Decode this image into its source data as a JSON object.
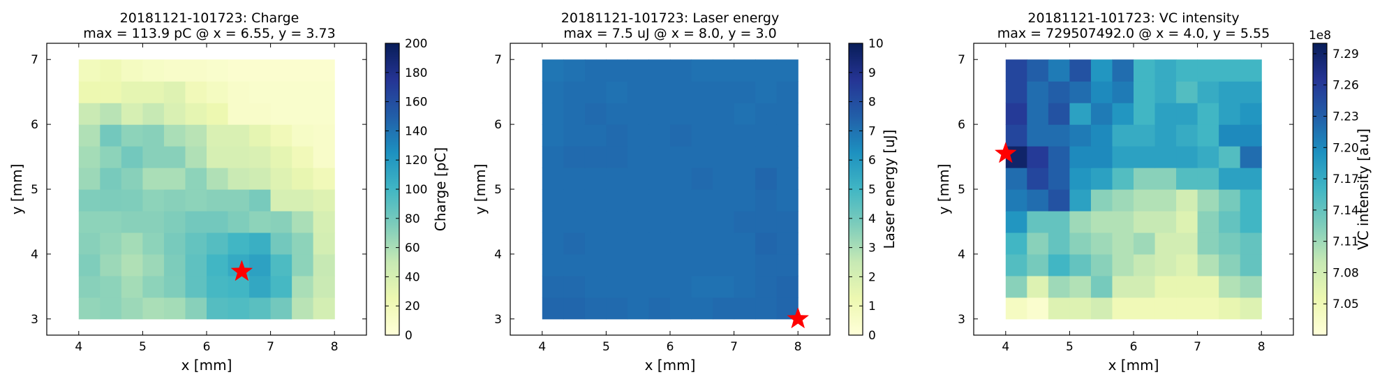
{
  "chart_data": [
    {
      "type": "heatmap",
      "title": [
        "20181121-101723: Charge",
        "max = 113.9 pC @ x = 6.55, y = 3.73"
      ],
      "xlabel": "x [mm]",
      "ylabel": "y [mm]",
      "xlim": [
        3.5,
        8.5
      ],
      "ylim": [
        2.75,
        7.25
      ],
      "xticks": [
        4,
        5,
        6,
        7,
        8
      ],
      "yticks": [
        3,
        4,
        5,
        6,
        7
      ],
      "extent": {
        "x": [
          4,
          8
        ],
        "y": [
          3,
          7
        ]
      },
      "colorbar": {
        "label": "Charge [pC]",
        "range": [
          0,
          200
        ],
        "ticks": [
          "0",
          "20",
          "40",
          "60",
          "80",
          "100",
          "120",
          "140",
          "160",
          "180",
          "200"
        ],
        "offset_label": ""
      },
      "colormap": [
        "#ffffd9",
        "#edf8b1",
        "#c7e9b4",
        "#7fcdbb",
        "#41b6c4",
        "#1d91c0",
        "#225ea8",
        "#253494",
        "#081d58"
      ],
      "values": [
        [
          68,
          70,
          65,
          60,
          62,
          72,
          92,
          94,
          90,
          80,
          55,
          42
        ],
        [
          72,
          70,
          62,
          70,
          75,
          88,
          98,
          100,
          110,
          98,
          60,
          48
        ],
        [
          75,
          65,
          58,
          65,
          76,
          88,
          100,
          108,
          114,
          95,
          70,
          50
        ],
        [
          72,
          68,
          62,
          70,
          78,
          86,
          92,
          100,
          105,
          80,
          70,
          42
        ],
        [
          70,
          70,
          72,
          72,
          75,
          80,
          80,
          75,
          70,
          72,
          60,
          40
        ],
        [
          75,
          76,
          75,
          70,
          72,
          70,
          72,
          72,
          78,
          40,
          40,
          35
        ],
        [
          65,
          78,
          72,
          60,
          60,
          70,
          58,
          48,
          45,
          35,
          28,
          20
        ],
        [
          62,
          70,
          80,
          72,
          72,
          58,
          40,
          40,
          38,
          30,
          20,
          10
        ],
        [
          58,
          80,
          70,
          72,
          60,
          55,
          38,
          38,
          30,
          20,
          12,
          10
        ],
        [
          48,
          55,
          40,
          50,
          38,
          30,
          25,
          10,
          10,
          8,
          8,
          8
        ],
        [
          25,
          25,
          30,
          30,
          35,
          20,
          15,
          10,
          8,
          8,
          8,
          8
        ],
        [
          18,
          22,
          15,
          12,
          10,
          10,
          8,
          6,
          6,
          6,
          6,
          6
        ]
      ],
      "marker": {
        "x": 6.55,
        "y": 3.73,
        "color": "#ff0000"
      }
    },
    {
      "type": "heatmap",
      "title": [
        "20181121-101723: Laser energy",
        "max = 7.5 uJ @ x = 8.0, y = 3.0"
      ],
      "xlabel": "x [mm]",
      "ylabel": "y [mm]",
      "xlim": [
        3.5,
        8.5
      ],
      "ylim": [
        2.75,
        7.25
      ],
      "xticks": [
        4,
        5,
        6,
        7,
        8
      ],
      "yticks": [
        3,
        4,
        5,
        6,
        7
      ],
      "extent": {
        "x": [
          4,
          8
        ],
        "y": [
          3,
          7
        ]
      },
      "colorbar": {
        "label": "Laser energy [uJ]",
        "range": [
          0,
          10
        ],
        "ticks": [
          "0",
          "1",
          "2",
          "3",
          "4",
          "5",
          "6",
          "7",
          "8",
          "9",
          "10"
        ],
        "offset_label": ""
      },
      "colormap": [
        "#ffffd9",
        "#edf8b1",
        "#c7e9b4",
        "#7fcdbb",
        "#41b6c4",
        "#1d91c0",
        "#225ea8",
        "#253494",
        "#081d58"
      ],
      "values": [
        [
          7.3,
          7.3,
          7.2,
          7.2,
          7.1,
          7.2,
          7.1,
          7.1,
          7.2,
          7.2,
          7.2,
          7.3
        ],
        [
          7.2,
          7.2,
          7.1,
          7.1,
          7.1,
          7.1,
          7.1,
          7.0,
          7.0,
          7.1,
          7.2,
          7.3
        ],
        [
          7.1,
          7.1,
          7.1,
          7.1,
          7.1,
          7.1,
          7.1,
          7.1,
          7.1,
          7.1,
          7.2,
          7.2
        ],
        [
          7.1,
          7.2,
          7.1,
          7.1,
          7.1,
          7.1,
          7.1,
          7.1,
          7.1,
          7.1,
          7.3,
          7.2
        ],
        [
          7.1,
          7.1,
          7.1,
          7.1,
          7.1,
          7.1,
          7.1,
          7.1,
          7.1,
          7.2,
          7.2,
          7.2
        ],
        [
          7.1,
          7.1,
          7.1,
          7.1,
          7.1,
          7.1,
          7.1,
          7.1,
          7.1,
          7.1,
          7.2,
          7.1
        ],
        [
          7.1,
          7.1,
          7.1,
          7.1,
          7.1,
          7.1,
          7.1,
          7.2,
          7.1,
          7.1,
          7.3,
          7.1
        ],
        [
          7.1,
          7.2,
          7.2,
          7.2,
          7.1,
          7.1,
          7.1,
          7.1,
          7.1,
          7.1,
          7.1,
          7.1
        ],
        [
          7.0,
          7.1,
          7.1,
          7.2,
          7.1,
          7.1,
          7.2,
          7.1,
          7.1,
          7.1,
          7.1,
          7.1
        ],
        [
          7.0,
          7.1,
          7.2,
          7.1,
          7.1,
          7.1,
          7.1,
          7.1,
          7.1,
          7.0,
          7.1,
          7.1
        ],
        [
          7.0,
          7.1,
          7.1,
          7.0,
          7.1,
          7.1,
          7.1,
          7.1,
          7.1,
          7.1,
          7.0,
          7.1
        ],
        [
          6.9,
          7.0,
          7.1,
          7.1,
          7.1,
          7.1,
          7.1,
          7.0,
          7.0,
          7.0,
          7.0,
          7.0
        ]
      ],
      "marker": {
        "x": 8.0,
        "y": 3.0,
        "color": "#ff0000"
      }
    },
    {
      "type": "heatmap",
      "title": [
        "20181121-101723: VC intensity",
        "max = 729507492.0 @ x = 4.0, y = 5.55"
      ],
      "xlabel": "x [mm]",
      "ylabel": "y [mm]",
      "xlim": [
        3.5,
        8.5
      ],
      "ylim": [
        2.75,
        7.25
      ],
      "xticks": [
        4,
        5,
        6,
        7,
        8
      ],
      "yticks": [
        3,
        4,
        5,
        6,
        7
      ],
      "extent": {
        "x": [
          4,
          8
        ],
        "y": [
          3,
          7
        ]
      },
      "colorbar": {
        "label": "VC intensity [a.u]",
        "range": [
          7.02,
          7.3
        ],
        "ticks": [
          "7.05",
          "7.08",
          "7.11",
          "7.14",
          "7.17",
          "7.20",
          "7.23",
          "7.26",
          "7.29"
        ],
        "tick_values": [
          7.05,
          7.08,
          7.11,
          7.14,
          7.17,
          7.2,
          7.23,
          7.26,
          7.29
        ],
        "offset_label": "1e8"
      },
      "colormap": [
        "#ffffd9",
        "#edf8b1",
        "#c7e9b4",
        "#7fcdbb",
        "#41b6c4",
        "#1d91c0",
        "#225ea8",
        "#253494",
        "#081d58"
      ],
      "values": [
        [
          7.04,
          7.03,
          7.07,
          7.07,
          7.08,
          7.05,
          7.05,
          7.05,
          7.05,
          7.05,
          7.06,
          7.07
        ],
        [
          7.12,
          7.07,
          7.11,
          7.1,
          7.13,
          7.08,
          7.08,
          7.06,
          7.06,
          7.06,
          7.1,
          7.11
        ],
        [
          7.15,
          7.13,
          7.16,
          7.14,
          7.12,
          7.1,
          7.09,
          7.08,
          7.07,
          7.1,
          7.12,
          7.14
        ],
        [
          7.16,
          7.12,
          7.14,
          7.12,
          7.11,
          7.1,
          7.11,
          7.08,
          7.08,
          7.12,
          7.13,
          7.14
        ],
        [
          7.19,
          7.14,
          7.14,
          7.11,
          7.1,
          7.1,
          7.09,
          7.09,
          7.07,
          7.12,
          7.14,
          7.16
        ],
        [
          7.21,
          7.22,
          7.24,
          7.18,
          7.12,
          7.11,
          7.1,
          7.1,
          7.08,
          7.11,
          7.13,
          7.16
        ],
        [
          7.22,
          7.25,
          7.23,
          7.19,
          7.18,
          7.15,
          7.12,
          7.12,
          7.15,
          7.15,
          7.18,
          7.18
        ],
        [
          7.29,
          7.26,
          7.23,
          7.2,
          7.2,
          7.18,
          7.18,
          7.18,
          7.18,
          7.17,
          7.15,
          7.22
        ],
        [
          7.25,
          7.22,
          7.22,
          7.21,
          7.2,
          7.17,
          7.17,
          7.18,
          7.17,
          7.16,
          7.2,
          7.2
        ],
        [
          7.26,
          7.22,
          7.24,
          7.18,
          7.21,
          7.19,
          7.16,
          7.18,
          7.18,
          7.16,
          7.18,
          7.19
        ],
        [
          7.25,
          7.22,
          7.23,
          7.22,
          7.2,
          7.21,
          7.16,
          7.17,
          7.15,
          7.17,
          7.18,
          7.18
        ],
        [
          7.25,
          7.23,
          7.21,
          7.24,
          7.19,
          7.22,
          7.16,
          7.17,
          7.16,
          7.16,
          7.16,
          7.16
        ]
      ],
      "marker": {
        "x": 4.0,
        "y": 5.55,
        "color": "#ff0000"
      }
    }
  ]
}
